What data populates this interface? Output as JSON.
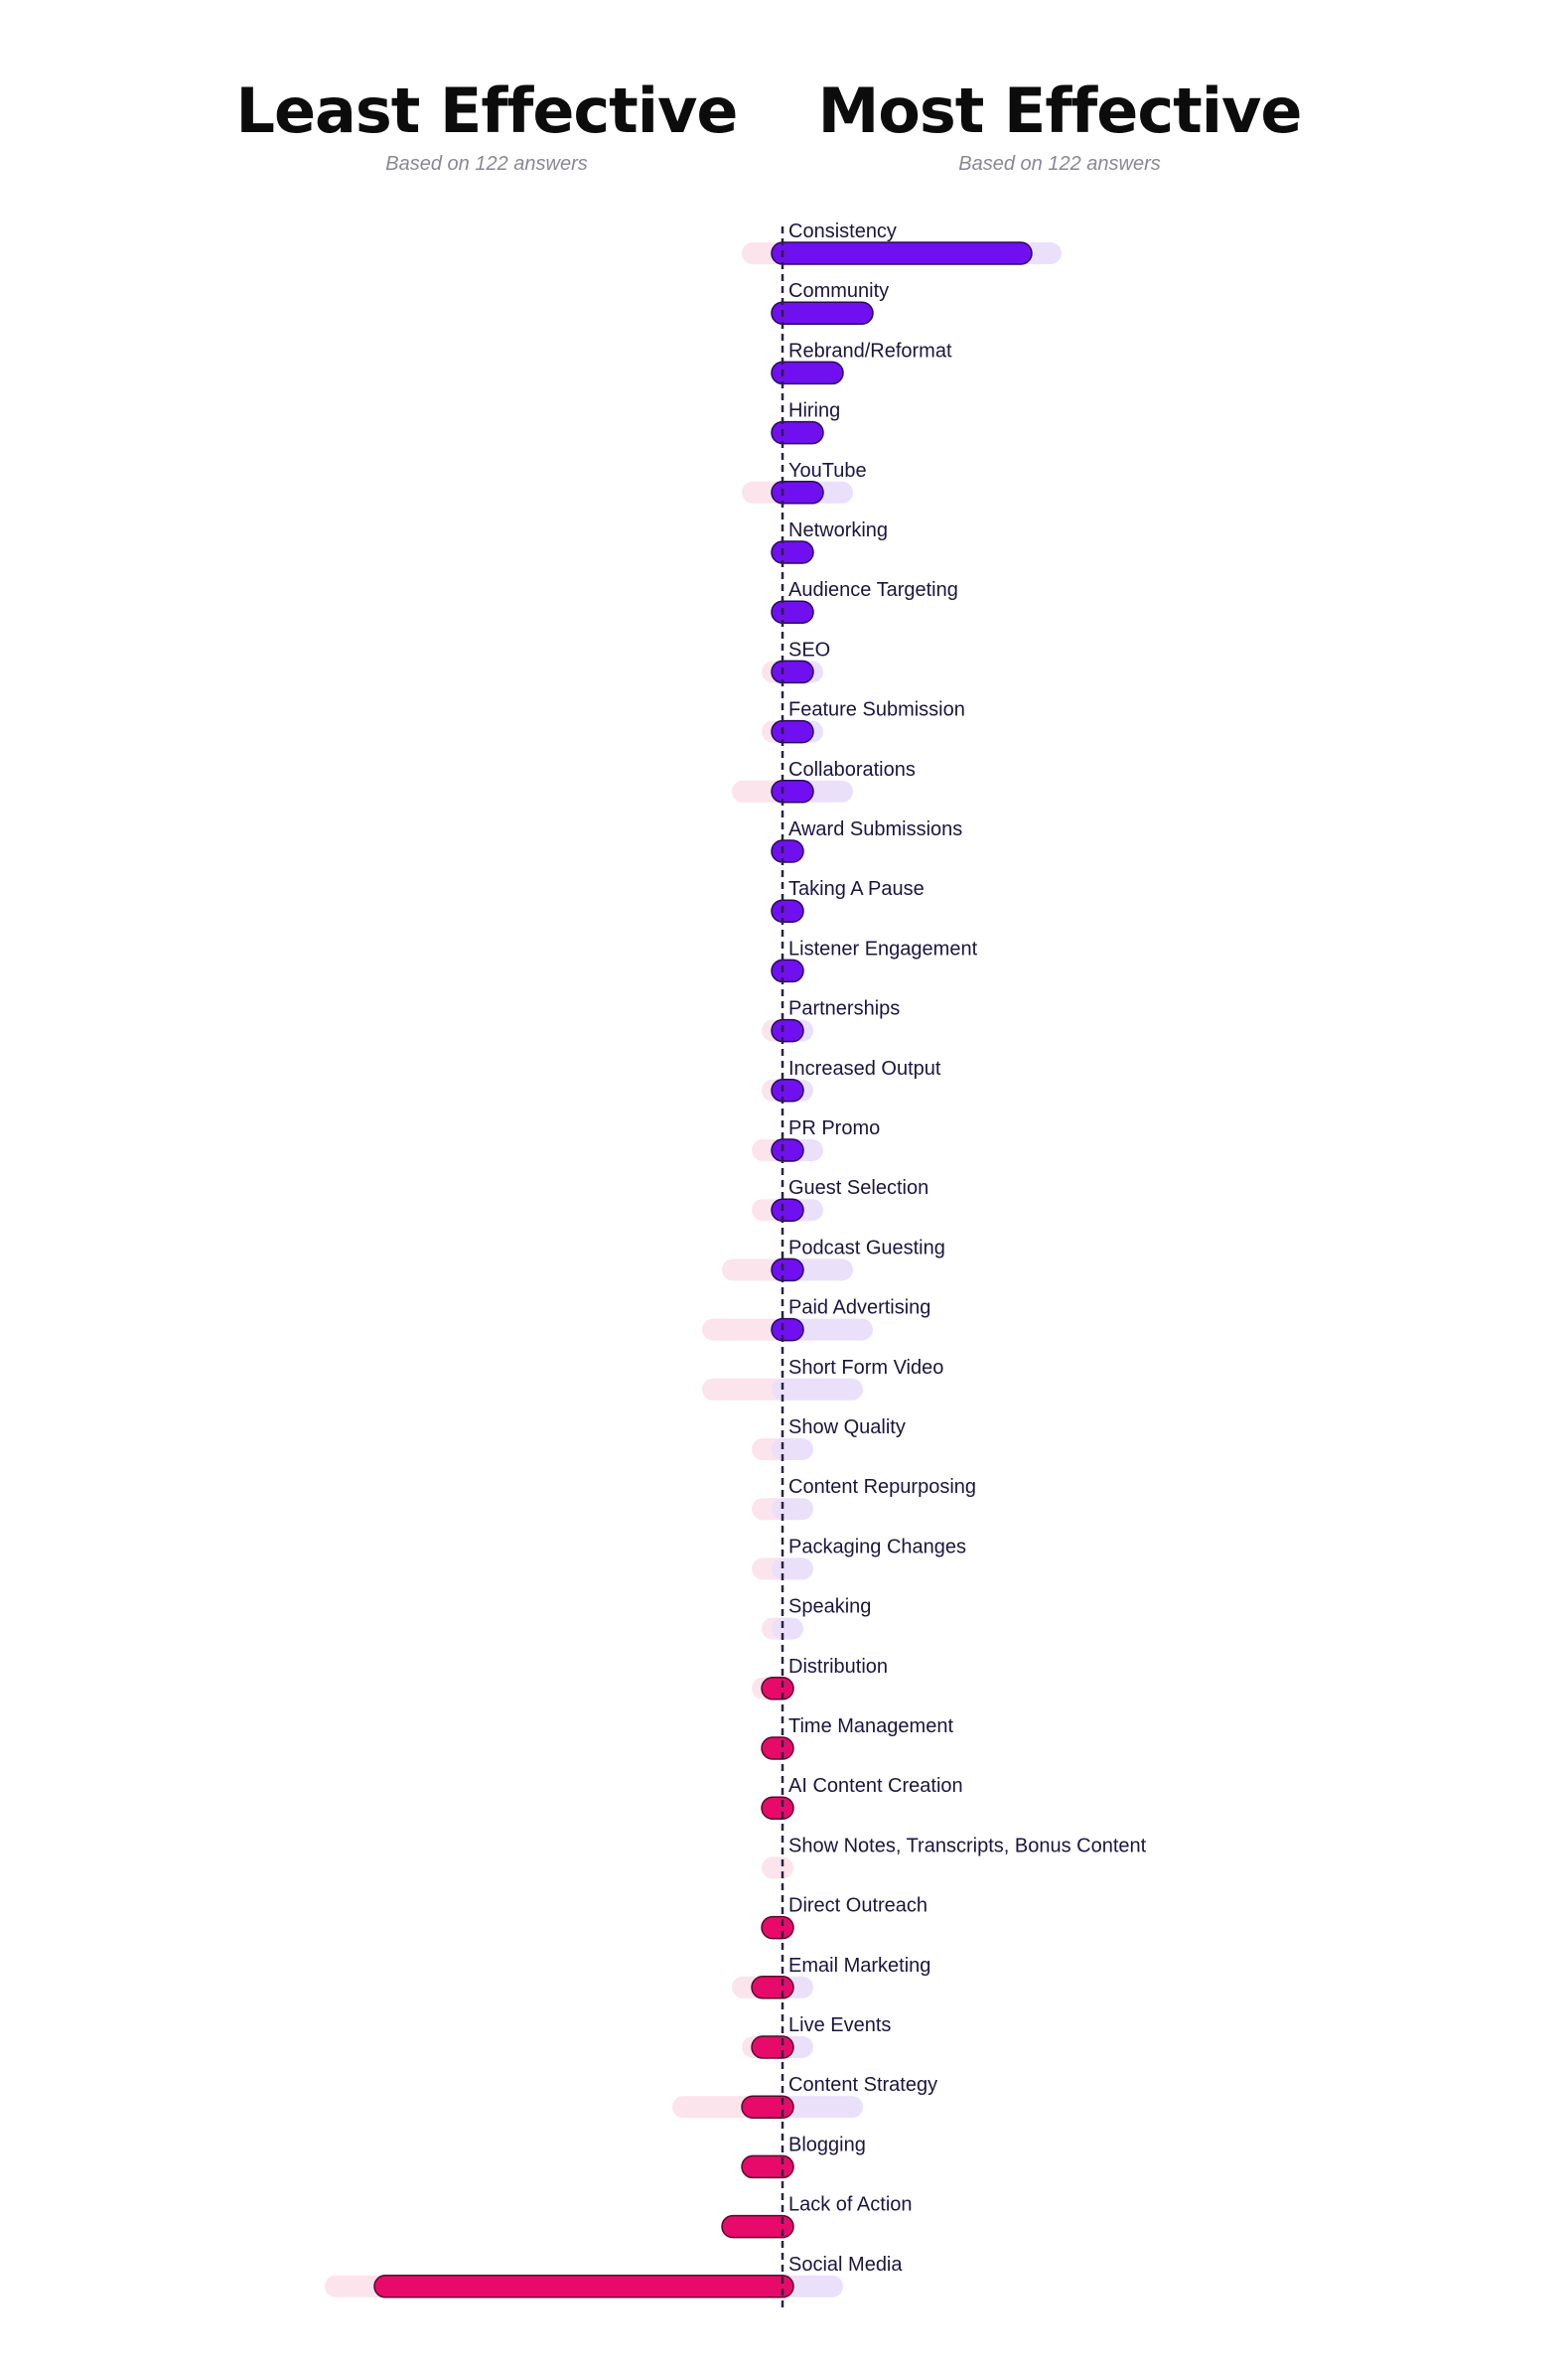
{
  "headers": {
    "least": {
      "title": "Least Effective",
      "subtitle": "Based on 122 answers"
    },
    "most": {
      "title": "Most Effective",
      "subtitle": "Based on 122 answers"
    }
  },
  "colors": {
    "most": "#7010f0",
    "least": "#e80a6a",
    "most_light": "#ebe0fa",
    "least_light": "#fbe4ec",
    "axis": "#2a2240",
    "label": "#1d1440"
  },
  "chart_data": {
    "type": "bar",
    "categories": [
      "Consistency",
      "Community",
      "Rebrand/Reformat",
      "Hiring",
      "YouTube",
      "Networking",
      "Audience Targeting",
      "SEO",
      "Feature Submission",
      "Collaborations",
      "Award Submissions",
      "Taking A Pause",
      "Listener Engagement",
      "Partnerships",
      "Increased Output",
      "PR Promo",
      "Guest Selection",
      "Podcast Guesting",
      "Paid Advertising",
      "Short Form Video",
      "Show Quality",
      "Content Repurposing",
      "Packaging Changes",
      "Speaking",
      "Distribution",
      "Time Management",
      "AI Content Creation",
      "Show Notes, Transcripts, Bonus Content",
      "Direct Outreach",
      "Email Marketing",
      "Live Events",
      "Content Strategy",
      "Blogging",
      "Lack of Action",
      "Social Media"
    ],
    "series": [
      {
        "values": [
          24,
          8,
          5,
          3,
          3,
          2,
          2,
          2,
          2,
          2,
          1,
          1,
          1,
          1,
          1,
          1,
          1,
          1,
          1,
          0,
          0,
          0,
          0,
          0,
          0,
          0,
          0,
          0,
          0,
          0,
          0,
          0,
          0,
          0,
          0
        ]
      },
      {
        "values": [
          0,
          0,
          0,
          0,
          0,
          0,
          0,
          0,
          0,
          0,
          0,
          0,
          0,
          0,
          0,
          0,
          0,
          0,
          0,
          0,
          0,
          0,
          0,
          0,
          1,
          1,
          1,
          0,
          1,
          2,
          2,
          3,
          3,
          5,
          40
        ]
      },
      {
        "values": [
          27,
          8,
          5,
          3,
          6,
          2,
          2,
          3,
          3,
          6,
          1,
          1,
          1,
          2,
          2,
          3,
          3,
          6,
          8,
          7,
          2,
          2,
          2,
          1,
          0,
          0,
          0,
          0,
          0,
          2,
          2,
          7,
          0,
          0,
          5
        ]
      },
      {
        "values": [
          3,
          0,
          0,
          0,
          3,
          0,
          0,
          1,
          1,
          4,
          0,
          0,
          0,
          1,
          1,
          2,
          2,
          5,
          7,
          7,
          2,
          2,
          2,
          1,
          2,
          0,
          0,
          1,
          0,
          4,
          3,
          10,
          0,
          0,
          45
        ]
      }
    ]
  }
}
